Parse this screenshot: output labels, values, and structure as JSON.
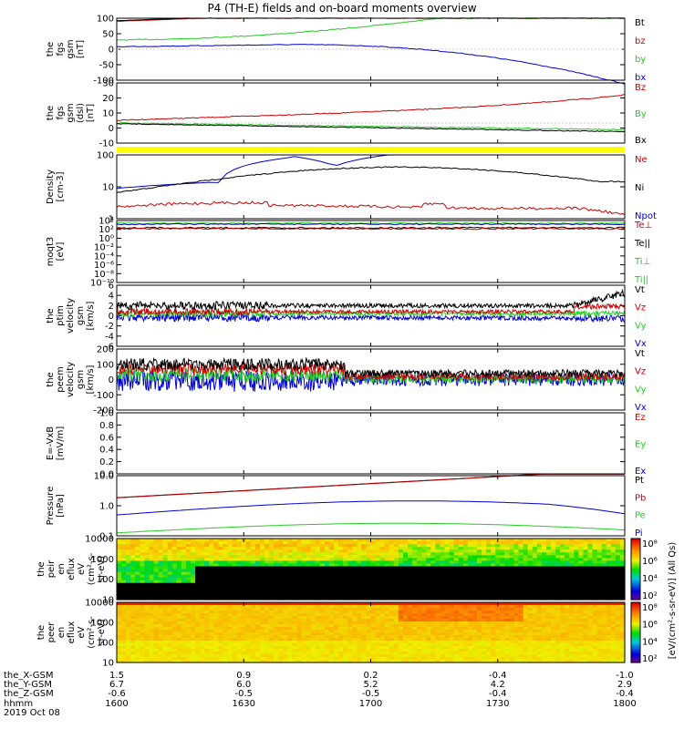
{
  "title": "P4 (TH-E) fields and on-board moments overview",
  "colors": {
    "black": "#000000",
    "red": "#cc0000",
    "green": "#22cc22",
    "blue": "#0000cc",
    "yellow": "#ffff00"
  },
  "chart_data": [
    {
      "type": "line",
      "panel": "fgs_gsm",
      "ylabel": [
        "the",
        "fgs",
        "gsm",
        "[nT]"
      ],
      "ylim": [
        -100,
        100
      ],
      "yticks": [
        "100",
        "50",
        "0",
        "-50",
        "-100"
      ],
      "series": [
        {
          "name": "Bt",
          "color": "#000000"
        },
        {
          "name": "bz",
          "color": "#cc0000"
        },
        {
          "name": "by",
          "color": "#22cc22"
        },
        {
          "name": "bx",
          "color": "#0000cc"
        }
      ]
    },
    {
      "type": "line",
      "panel": "fgs_gsm_dsl",
      "ylabel": [
        "the",
        "fgs",
        "gsm",
        "(dsl)",
        "[nT]"
      ],
      "ylim": [
        -15,
        30
      ],
      "yticks": [
        "30",
        "20",
        "10",
        "0",
        "-10"
      ],
      "series": [
        {
          "name": "Bz",
          "color": "#cc0000"
        },
        {
          "name": "By",
          "color": "#22cc22"
        },
        {
          "name": "Bx",
          "color": "#000000"
        }
      ]
    },
    {
      "type": "line",
      "panel": "density",
      "ylabel": [
        "Density",
        "[cm-3]"
      ],
      "yticks": [
        "100",
        "10",
        "1"
      ],
      "log": true,
      "series": [
        {
          "name": "Ne",
          "color": "#cc0000"
        },
        {
          "name": "Ni",
          "color": "#000000"
        },
        {
          "name": "Npot",
          "color": "#0000cc"
        }
      ]
    },
    {
      "type": "line",
      "panel": "temperature",
      "ylabel": [
        "moqt3",
        "[eV]"
      ],
      "log": true,
      "yticks": [
        "10⁴",
        "10²",
        "10⁰",
        "10⁻²",
        "10⁻⁴",
        "10⁻⁶",
        "10⁻⁸",
        "10⁻¹⁰"
      ],
      "series": [
        {
          "name": "Te⊥",
          "color": "#cc0000"
        },
        {
          "name": "Te||",
          "color": "#000000"
        },
        {
          "name": "Ti⊥",
          "color": "#22cc22"
        },
        {
          "name": "Ti||",
          "color": "#22cc22"
        }
      ]
    },
    {
      "type": "line",
      "panel": "ptim_velocity",
      "ylabel": [
        "the",
        "ptim",
        "velocity",
        "gsm",
        "[km/s]"
      ],
      "ylim": [
        -6,
        6
      ],
      "yticks": [
        "6",
        "4",
        "2",
        "0",
        "-2",
        "-4",
        "-6"
      ],
      "series": [
        {
          "name": "Vt",
          "color": "#000000"
        },
        {
          "name": "Vz",
          "color": "#cc0000"
        },
        {
          "name": "Vy",
          "color": "#22cc22"
        },
        {
          "name": "Vx",
          "color": "#0000cc"
        }
      ]
    },
    {
      "type": "line",
      "panel": "peem_velocity",
      "ylabel": [
        "the",
        "peem",
        "velocity",
        "gsm",
        "[km/s]"
      ],
      "ylim": [
        -200,
        200
      ],
      "yticks": [
        "200",
        "100",
        "0",
        "-100",
        "-200"
      ],
      "series": [
        {
          "name": "Vt",
          "color": "#000000"
        },
        {
          "name": "Vz",
          "color": "#cc0000"
        },
        {
          "name": "Vy",
          "color": "#22cc22"
        },
        {
          "name": "Vx",
          "color": "#0000cc"
        }
      ]
    },
    {
      "type": "line",
      "panel": "efield",
      "ylabel": [
        "E=-VxB",
        "[mV/m]"
      ],
      "ylim": [
        0,
        1
      ],
      "yticks": [
        "1.0",
        "0.8",
        "0.6",
        "0.4",
        "0.2",
        "0.0"
      ],
      "series": [
        {
          "name": "Ez",
          "color": "#cc0000"
        },
        {
          "name": "Ey",
          "color": "#22cc22"
        },
        {
          "name": "Ex",
          "color": "#0000cc"
        }
      ]
    },
    {
      "type": "line",
      "panel": "pressure",
      "ylabel": [
        "Pressure",
        "[nPa]"
      ],
      "log": true,
      "yticks": [
        "10.0",
        "1.0",
        "0.1"
      ],
      "series": [
        {
          "name": "Pt",
          "color": "#000000"
        },
        {
          "name": "Pb",
          "color": "#cc0000"
        },
        {
          "name": "Pe",
          "color": "#22cc22"
        },
        {
          "name": "Pi",
          "color": "#0000cc"
        }
      ]
    },
    {
      "type": "heatmap",
      "panel": "peir_eflux",
      "ylabel": [
        "the",
        "peir",
        "en",
        "eflux",
        "eV",
        "(cm²-s-",
        "sr-eV)"
      ],
      "yticks": [
        "10000",
        "1000",
        "100",
        "10"
      ]
    },
    {
      "type": "heatmap",
      "panel": "peer_eflux",
      "ylabel": [
        "the",
        "peer",
        "en",
        "eflux",
        "eV",
        "(cm²-s-",
        "sr-eV)"
      ],
      "yticks": [
        "10000",
        "1000",
        "100",
        "10"
      ]
    }
  ],
  "colorbar": {
    "label": "[eV/(cm²-s-sr-eV)] (All Qs)",
    "ticks_top": [
      "10⁸",
      "10⁶",
      "10⁴",
      "10²"
    ],
    "ticks_bottom": [
      "10⁸",
      "10⁶",
      "10⁴",
      "10²"
    ]
  },
  "xaxis": {
    "rows": [
      {
        "label": "the_X-GSM",
        "values": [
          "1.5",
          "0.9",
          "0.2",
          "-0.4",
          "-1.0"
        ]
      },
      {
        "label": "the_Y-GSM",
        "values": [
          "6.7",
          "6.0",
          "5.2",
          "4.2",
          "2.9"
        ]
      },
      {
        "label": "the_Z-GSM",
        "values": [
          "-0.6",
          "-0.5",
          "-0.5",
          "-0.4",
          "-0.4"
        ]
      },
      {
        "label": "hhmm",
        "values": [
          "1600",
          "1630",
          "1700",
          "1730",
          "1800"
        ]
      }
    ],
    "date": "2019 Oct 08"
  }
}
